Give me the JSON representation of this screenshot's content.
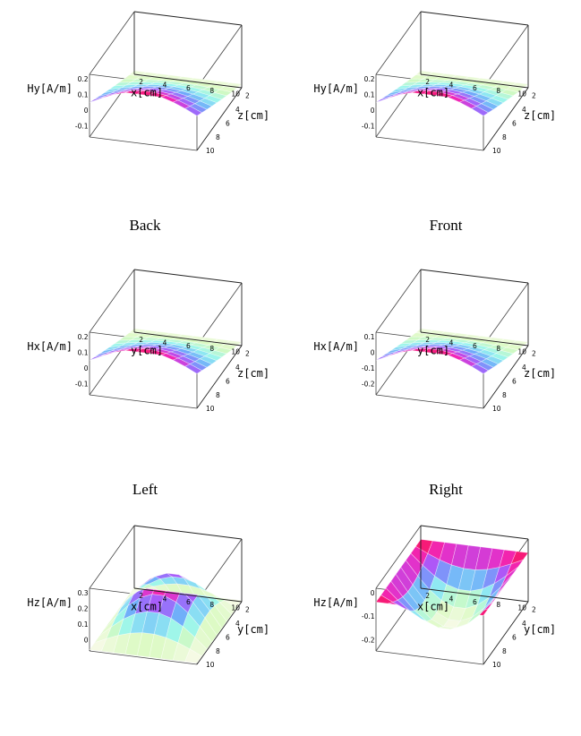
{
  "captions": {
    "back": "Back",
    "front": "Front",
    "left": "Left",
    "right": "Right"
  },
  "chart_data": [
    {
      "type": "surface3d",
      "xlabel": "x[cm]",
      "ylabel": "z[cm]",
      "zlabel": "Hy[A/m]",
      "x_ticks": [
        "2",
        "4",
        "6",
        "8",
        "10"
      ],
      "y_ticks": [
        "2",
        "4",
        "6",
        "8",
        "10"
      ],
      "z_ticks": [
        "0.2",
        "0.1",
        "0",
        "-0.1"
      ],
      "zlim": [
        -0.1,
        0.2
      ],
      "shape": "rising-ridge"
    },
    {
      "type": "surface3d",
      "xlabel": "x[cm]",
      "ylabel": "z[cm]",
      "zlabel": "Hy[A/m]",
      "x_ticks": [
        "2",
        "4",
        "6",
        "8",
        "10"
      ],
      "y_ticks": [
        "2",
        "4",
        "6",
        "8",
        "10"
      ],
      "z_ticks": [
        "0.2",
        "0.1",
        "0",
        "-0.1"
      ],
      "zlim": [
        -0.1,
        0.2
      ],
      "shape": "rising-ridge"
    },
    {
      "type": "surface3d",
      "xlabel": "y[cm]",
      "ylabel": "z[cm]",
      "zlabel": "Hx[A/m]",
      "x_ticks": [
        "2",
        "4",
        "6",
        "8",
        "10"
      ],
      "y_ticks": [
        "2",
        "4",
        "6",
        "8",
        "10"
      ],
      "z_ticks": [
        "0.2",
        "0.1",
        "0",
        "-0.1"
      ],
      "zlim": [
        -0.1,
        0.2
      ],
      "shape": "rising-ridge"
    },
    {
      "type": "surface3d",
      "xlabel": "y[cm]",
      "ylabel": "z[cm]",
      "zlabel": "Hx[A/m]",
      "x_ticks": [
        "2",
        "4",
        "6",
        "8",
        "10"
      ],
      "y_ticks": [
        "2",
        "4",
        "6",
        "8",
        "10"
      ],
      "z_ticks": [
        "0.1",
        "0",
        "-0.1",
        "-0.2"
      ],
      "zlim": [
        -0.2,
        0.1
      ],
      "shape": "rising-ridge"
    },
    {
      "type": "surface3d",
      "xlabel": "x[cm]",
      "ylabel": "y[cm]",
      "zlabel": "Hz[A/m]",
      "x_ticks": [
        "2",
        "4",
        "6",
        "8",
        "10"
      ],
      "y_ticks": [
        "2",
        "4",
        "6",
        "8",
        "10"
      ],
      "z_ticks": [
        "0.3",
        "0.2",
        "0.1",
        "0"
      ],
      "zlim": [
        0,
        0.3
      ],
      "shape": "dome"
    },
    {
      "type": "surface3d",
      "xlabel": "x[cm]",
      "ylabel": "y[cm]",
      "zlabel": "Hz[A/m]",
      "x_ticks": [
        "2",
        "4",
        "6",
        "8",
        "10"
      ],
      "y_ticks": [
        "2",
        "4",
        "6",
        "8",
        "10"
      ],
      "z_ticks": [
        "0",
        "-0.1",
        "-0.2"
      ],
      "zlim": [
        -0.2,
        0
      ],
      "shape": "bowl"
    }
  ]
}
